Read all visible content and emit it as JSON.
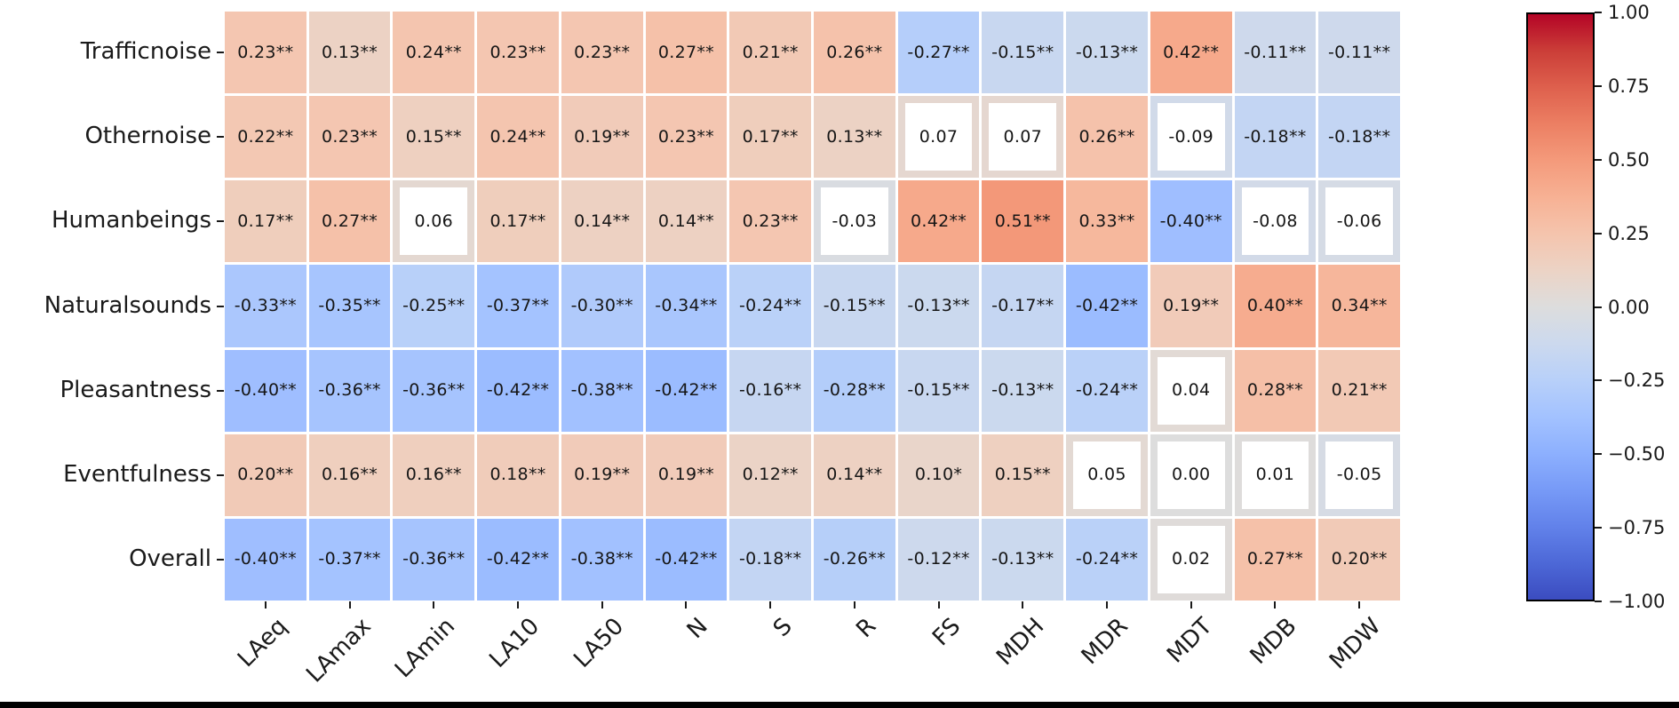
{
  "figure": {
    "background": "#ffffff",
    "bottom_edge_color": "#000000",
    "text_color": "#1a1a1a"
  },
  "chart_data": {
    "type": "heatmap",
    "title": "",
    "xlabel": "",
    "ylabel": "",
    "x_categories": [
      "LAeq",
      "LAmax",
      "LAmin",
      "LA10",
      "LA50",
      "N",
      "S",
      "R",
      "FS",
      "MDH",
      "MDR",
      "MDT",
      "MDB",
      "MDW"
    ],
    "y_categories": [
      "Trafficnoise",
      "Othernoise",
      "Humanbeings",
      "Naturalsounds",
      "Pleasantness",
      "Eventfulness",
      "Overall"
    ],
    "cell_labels": [
      [
        "0.23**",
        "0.13**",
        "0.24**",
        "0.23**",
        "0.23**",
        "0.27**",
        "0.21**",
        "0.26**",
        "-0.27**",
        "-0.15**",
        "-0.13**",
        "0.42**",
        "-0.11**",
        "-0.11**"
      ],
      [
        "0.22**",
        "0.23**",
        "0.15**",
        "0.24**",
        "0.19**",
        "0.23**",
        "0.17**",
        "0.13**",
        "0.07",
        "0.07",
        "0.26**",
        "-0.09",
        "-0.18**",
        "-0.18**"
      ],
      [
        "0.17**",
        "0.27**",
        "0.06",
        "0.17**",
        "0.14**",
        "0.14**",
        "0.23**",
        "-0.03",
        "0.42**",
        "0.51**",
        "0.33**",
        "-0.40**",
        "-0.08",
        "-0.06"
      ],
      [
        "-0.33**",
        "-0.35**",
        "-0.25**",
        "-0.37**",
        "-0.30**",
        "-0.34**",
        "-0.24**",
        "-0.15**",
        "-0.13**",
        "-0.17**",
        "-0.42**",
        "0.19**",
        "0.40**",
        "0.34**"
      ],
      [
        "-0.40**",
        "-0.36**",
        "-0.36**",
        "-0.42**",
        "-0.38**",
        "-0.42**",
        "-0.16**",
        "-0.28**",
        "-0.15**",
        "-0.13**",
        "-0.24**",
        "0.04",
        "0.28**",
        "0.21**"
      ],
      [
        "0.20**",
        "0.16**",
        "0.16**",
        "0.18**",
        "0.19**",
        "0.19**",
        "0.12**",
        "0.14**",
        "0.10*",
        "0.15**",
        "0.05",
        "0.00",
        "0.01",
        "-0.05"
      ],
      [
        "-0.40**",
        "-0.37**",
        "-0.36**",
        "-0.42**",
        "-0.38**",
        "-0.42**",
        "-0.18**",
        "-0.26**",
        "-0.12**",
        "-0.13**",
        "-0.24**",
        "0.02",
        "0.27**",
        "0.20**"
      ]
    ],
    "values": [
      [
        0.23,
        0.13,
        0.24,
        0.23,
        0.23,
        0.27,
        0.21,
        0.26,
        -0.27,
        -0.15,
        -0.13,
        0.42,
        -0.11,
        -0.11
      ],
      [
        0.22,
        0.23,
        0.15,
        0.24,
        0.19,
        0.23,
        0.17,
        0.13,
        0.07,
        0.07,
        0.26,
        -0.09,
        -0.18,
        -0.18
      ],
      [
        0.17,
        0.27,
        0.06,
        0.17,
        0.14,
        0.14,
        0.23,
        -0.03,
        0.42,
        0.51,
        0.33,
        -0.4,
        -0.08,
        -0.06
      ],
      [
        -0.33,
        -0.35,
        -0.25,
        -0.37,
        -0.3,
        -0.34,
        -0.24,
        -0.15,
        -0.13,
        -0.17,
        -0.42,
        0.19,
        0.4,
        0.34
      ],
      [
        -0.4,
        -0.36,
        -0.36,
        -0.42,
        -0.38,
        -0.42,
        -0.16,
        -0.28,
        -0.15,
        -0.13,
        -0.24,
        0.04,
        0.28,
        0.21
      ],
      [
        0.2,
        0.16,
        0.16,
        0.18,
        0.19,
        0.19,
        0.12,
        0.14,
        0.1,
        0.15,
        0.05,
        0.0,
        0.01,
        -0.05
      ],
      [
        -0.4,
        -0.37,
        -0.36,
        -0.42,
        -0.38,
        -0.42,
        -0.18,
        -0.26,
        -0.12,
        -0.13,
        -0.24,
        0.02,
        0.27,
        0.2
      ]
    ],
    "vmin": -1,
    "vmax": 1,
    "grid": false,
    "legend_position": "right-colorbar",
    "colorbar": {
      "tick_labels": [
        "1.00",
        "0.75",
        "0.50",
        "0.25",
        "0.00",
        "−0.25",
        "−0.50",
        "−0.75",
        "−1.00"
      ],
      "tick_values": [
        1,
        0.75,
        0.5,
        0.25,
        0,
        -0.25,
        -0.5,
        -0.75,
        -1
      ]
    },
    "colormap_anchors": [
      [
        -1.0,
        "#3b4cc0"
      ],
      [
        -0.875,
        "#4d68d7"
      ],
      [
        -0.75,
        "#6282ea"
      ],
      [
        -0.625,
        "#779af7"
      ],
      [
        -0.5,
        "#8db0fe"
      ],
      [
        -0.375,
        "#a3c2ff"
      ],
      [
        -0.25,
        "#b8d0f9"
      ],
      [
        -0.125,
        "#ccd9ee"
      ],
      [
        0.0,
        "#dddddd"
      ],
      [
        0.125,
        "#ecd3c5"
      ],
      [
        0.25,
        "#f5c4ad"
      ],
      [
        0.375,
        "#f7b194"
      ],
      [
        0.5,
        "#f49a7b"
      ],
      [
        0.625,
        "#ec7f63"
      ],
      [
        0.75,
        "#de604d"
      ],
      [
        0.875,
        "#cb3e38"
      ],
      [
        1.0,
        "#b40426"
      ]
    ]
  }
}
